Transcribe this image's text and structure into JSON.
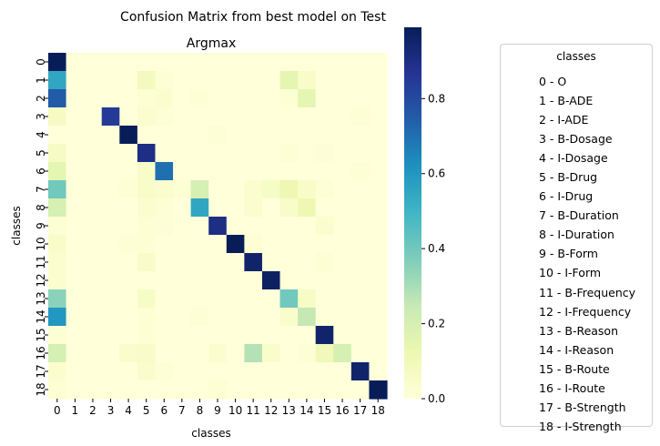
{
  "figure": {
    "suptitle": "Confusion Matrix from best model on Test"
  },
  "legend": {
    "title": "classes",
    "items": [
      "0 - O",
      "1 - B-ADE",
      "2 - I-ADE",
      "3 - B-Dosage",
      "4 - I-Dosage",
      "5 - B-Drug",
      "6 - I-Drug",
      "7 - B-Duration",
      "8 - I-Duration",
      "9 - B-Form",
      "10 - I-Form",
      "11 - B-Frequency",
      "12 - I-Frequency",
      "13 - B-Reason",
      "14 - I-Reason",
      "15 - B-Route",
      "16 - I-Route",
      "17 - B-Strength",
      "18 - I-Strength"
    ]
  },
  "chart_data": {
    "type": "heatmap",
    "title": "Argmax",
    "xlabel": "classes",
    "ylabel": "classes",
    "x_ticks": [
      "0",
      "1",
      "2",
      "3",
      "4",
      "5",
      "6",
      "7",
      "8",
      "9",
      "10",
      "11",
      "12",
      "13",
      "14",
      "15",
      "16",
      "17",
      "18"
    ],
    "y_ticks": [
      "0",
      "1",
      "2",
      "3",
      "4",
      "5",
      "6",
      "7",
      "8",
      "9",
      "10",
      "11",
      "12",
      "13",
      "14",
      "15",
      "16",
      "17",
      "18"
    ],
    "colormap": "YlGnBu",
    "vmin": 0.0,
    "vmax": 0.99,
    "colorbar_ticks": [
      0.0,
      0.2,
      0.4,
      0.6,
      0.8
    ],
    "colorbar_tick_labels": [
      "0.0",
      "0.2",
      "0.4",
      "0.6",
      "0.8"
    ],
    "matrix": [
      [
        0.99,
        0,
        0,
        0,
        0,
        0,
        0,
        0,
        0,
        0,
        0,
        0,
        0,
        0,
        0,
        0,
        0,
        0,
        0
      ],
      [
        0.55,
        0,
        0,
        0,
        0,
        0.08,
        0.02,
        0,
        0,
        0,
        0,
        0,
        0,
        0.15,
        0.05,
        0,
        0,
        0,
        0
      ],
      [
        0.75,
        0,
        0,
        0,
        0,
        0.02,
        0.03,
        0,
        0.02,
        0,
        0,
        0,
        0,
        0.02,
        0.15,
        0,
        0,
        0,
        0
      ],
      [
        0.07,
        0,
        0,
        0.85,
        0,
        0.03,
        0.02,
        0,
        0,
        0,
        0,
        0,
        0,
        0,
        0,
        0,
        0,
        0.02,
        0
      ],
      [
        0,
        0,
        0,
        0,
        0.99,
        0,
        0,
        0,
        0,
        0.01,
        0,
        0,
        0,
        0,
        0,
        0,
        0,
        0,
        0
      ],
      [
        0.07,
        0,
        0,
        0,
        0,
        0.9,
        0,
        0,
        0,
        0,
        0,
        0,
        0,
        0.02,
        0,
        0.01,
        0,
        0,
        0
      ],
      [
        0.15,
        0,
        0,
        0,
        0,
        0.05,
        0.7,
        0,
        0,
        0,
        0,
        0,
        0,
        0,
        0,
        0,
        0,
        0.02,
        0
      ],
      [
        0.4,
        0,
        0,
        0,
        0.02,
        0.05,
        0.03,
        0.02,
        0.2,
        0,
        0,
        0.03,
        0.06,
        0.12,
        0.05,
        0.02,
        0,
        0,
        0
      ],
      [
        0.2,
        0,
        0,
        0,
        0,
        0.03,
        0.02,
        0,
        0.55,
        0,
        0,
        0.03,
        0,
        0.05,
        0.12,
        0,
        0,
        0,
        0
      ],
      [
        0.02,
        0,
        0,
        0,
        0,
        0.02,
        0.01,
        0,
        0,
        0.9,
        0,
        0,
        0,
        0,
        0,
        0.03,
        0,
        0,
        0
      ],
      [
        0.05,
        0,
        0,
        0,
        0.02,
        0.02,
        0,
        0,
        0,
        0,
        0.99,
        0.02,
        0,
        0,
        0,
        0,
        0,
        0,
        0
      ],
      [
        0.03,
        0,
        0,
        0,
        0,
        0.05,
        0,
        0,
        0,
        0,
        0,
        0.95,
        0,
        0,
        0,
        0.02,
        0,
        0,
        0
      ],
      [
        0.03,
        0,
        0,
        0,
        0,
        0,
        0,
        0,
        0,
        0,
        0,
        0,
        0.97,
        0,
        0,
        0,
        0,
        0,
        0
      ],
      [
        0.35,
        0,
        0,
        0,
        0,
        0.06,
        0,
        0,
        0,
        0,
        0,
        0,
        0,
        0.4,
        0.06,
        0,
        0,
        0,
        0
      ],
      [
        0.6,
        0,
        0,
        0,
        0,
        0.02,
        0,
        0,
        0.02,
        0,
        0,
        0,
        0,
        0.04,
        0.25,
        0,
        0,
        0,
        0
      ],
      [
        0.02,
        0,
        0,
        0,
        0,
        0.02,
        0,
        0,
        0,
        0,
        0,
        0,
        0,
        0,
        0,
        0.95,
        0,
        0,
        0
      ],
      [
        0.2,
        0,
        0,
        0,
        0.04,
        0.05,
        0,
        0,
        0,
        0.03,
        0,
        0.28,
        0.04,
        0,
        0.02,
        0.1,
        0.2,
        0,
        0
      ],
      [
        0.03,
        0,
        0,
        0,
        0,
        0.04,
        0.02,
        0,
        0,
        0,
        0,
        0,
        0,
        0,
        0,
        0,
        0,
        0.95,
        0
      ],
      [
        0.02,
        0,
        0,
        0,
        0,
        0,
        0,
        0,
        0,
        0.02,
        0,
        0,
        0,
        0,
        0,
        0,
        0,
        0,
        0.99
      ]
    ]
  }
}
